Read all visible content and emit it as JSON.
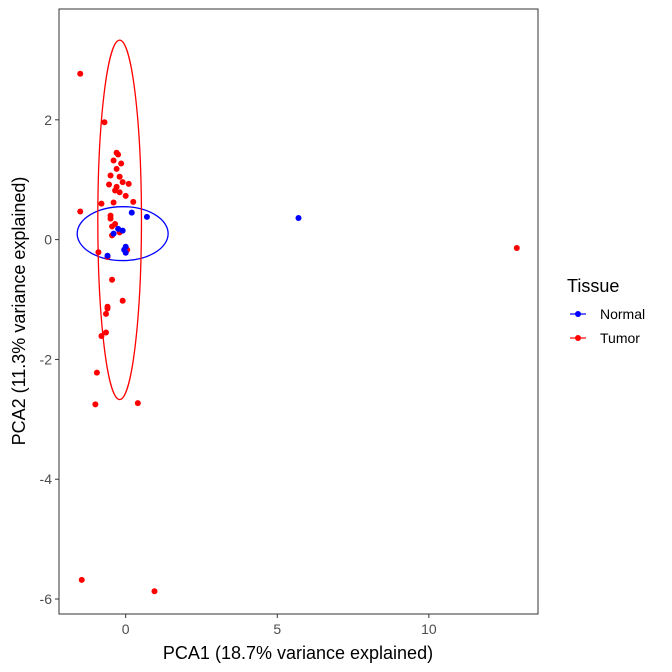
{
  "chart_data": {
    "type": "scatter",
    "xlabel": "PCA1 (18.7% variance explained)",
    "ylabel": "PCA2 (11.3% variance explained)",
    "xlim": [
      -2.2,
      13.6
    ],
    "ylim": [
      -6.25,
      3.85
    ],
    "x_ticks": [
      0,
      5,
      10
    ],
    "y_ticks": [
      2,
      0,
      -2,
      -4,
      -6
    ],
    "x_tick_labels": [
      "0",
      "5",
      "10"
    ],
    "y_tick_labels": [
      "2",
      "0",
      "-2",
      "-4",
      "-6"
    ],
    "grid": false,
    "legend": {
      "title": "Tissue",
      "position": "right",
      "entries": [
        "Normal",
        "Tumor"
      ]
    },
    "series": [
      {
        "name": "Normal",
        "color": "#0000ff",
        "ellipse": {
          "cx": -0.1,
          "cy": 0.1,
          "rx": 1.5,
          "ry": 0.45
        },
        "points": [
          [
            0.2,
            0.45
          ],
          [
            0.7,
            0.38
          ],
          [
            -0.25,
            0.18
          ],
          [
            -0.4,
            0.1
          ],
          [
            -0.1,
            0.15
          ],
          [
            0.0,
            -0.12
          ],
          [
            -0.05,
            -0.17
          ],
          [
            0.0,
            -0.22
          ],
          [
            5.7,
            0.36
          ],
          [
            -0.6,
            -0.27
          ]
        ]
      },
      {
        "name": "Tumor",
        "color": "#ff0000",
        "ellipse": {
          "cx": -0.2,
          "cy": 0.33,
          "rx": 0.72,
          "ry": 3.0
        },
        "points": [
          [
            -1.5,
            2.77
          ],
          [
            -0.7,
            1.96
          ],
          [
            -0.3,
            1.45
          ],
          [
            -0.25,
            1.42
          ],
          [
            -0.4,
            1.32
          ],
          [
            -0.15,
            1.27
          ],
          [
            -0.3,
            1.18
          ],
          [
            -0.5,
            1.07
          ],
          [
            -0.2,
            1.05
          ],
          [
            -0.1,
            0.96
          ],
          [
            0.1,
            0.93
          ],
          [
            -0.55,
            0.92
          ],
          [
            -0.3,
            0.88
          ],
          [
            -0.35,
            0.82
          ],
          [
            -0.2,
            0.79
          ],
          [
            0.0,
            0.73
          ],
          [
            0.25,
            0.63
          ],
          [
            -0.4,
            0.62
          ],
          [
            -0.8,
            0.6
          ],
          [
            -1.5,
            0.47
          ],
          [
            -0.5,
            0.4
          ],
          [
            -0.5,
            0.35
          ],
          [
            -0.35,
            0.26
          ],
          [
            -0.45,
            0.22
          ],
          [
            -0.2,
            0.12
          ],
          [
            -0.45,
            0.07
          ],
          [
            0.05,
            -0.17
          ],
          [
            -0.9,
            -0.21
          ],
          [
            -0.6,
            -0.29
          ],
          [
            -0.45,
            -0.67
          ],
          [
            -0.1,
            -1.02
          ],
          [
            -0.6,
            -1.12
          ],
          [
            -0.6,
            -1.15
          ],
          [
            -0.65,
            -1.24
          ],
          [
            -0.65,
            -1.55
          ],
          [
            -0.8,
            -1.61
          ],
          [
            -0.95,
            -2.22
          ],
          [
            -1.0,
            -2.75
          ],
          [
            0.4,
            -2.73
          ],
          [
            -1.45,
            -5.68
          ],
          [
            0.95,
            -5.87
          ],
          [
            12.9,
            -0.14
          ]
        ]
      }
    ]
  }
}
